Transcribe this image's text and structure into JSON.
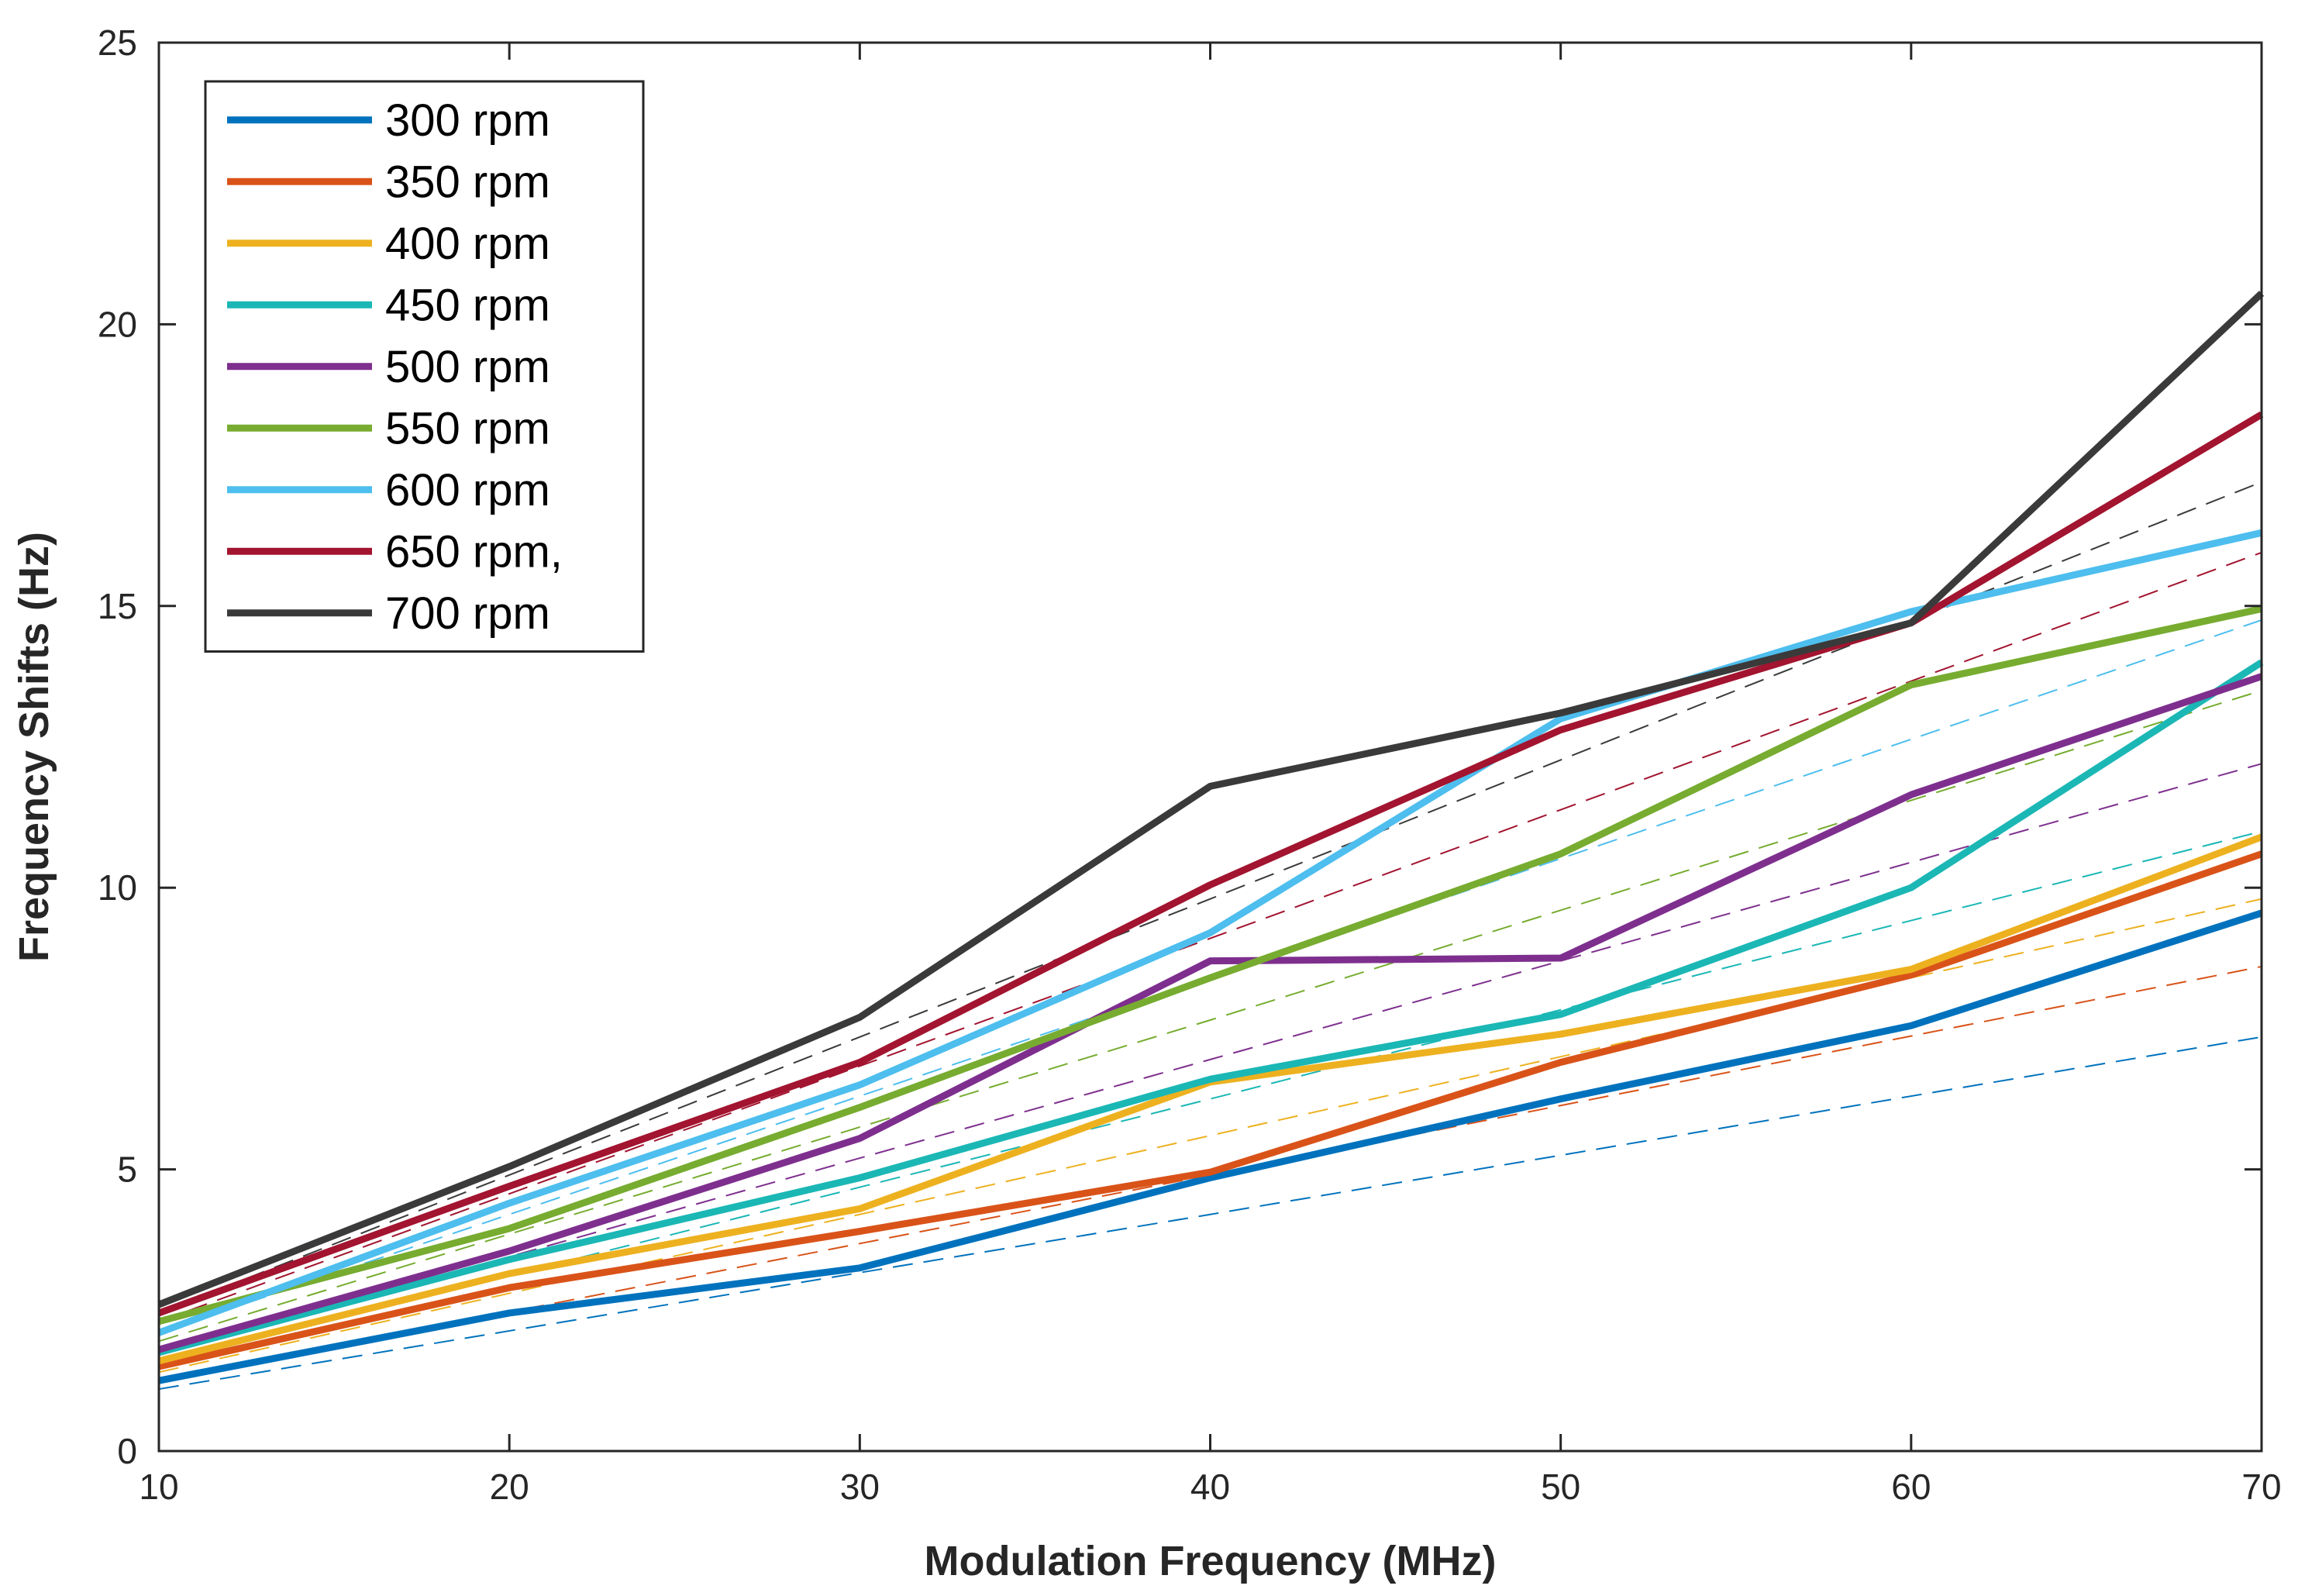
{
  "chart_data": {
    "type": "line",
    "title": "",
    "xlabel": "Modulation Frequency (MHz)",
    "ylabel": "Frequency Shifts (Hz)",
    "xlim": [
      10,
      70
    ],
    "ylim": [
      0,
      25
    ],
    "xticks": [
      10,
      20,
      30,
      40,
      50,
      60,
      70
    ],
    "yticks": [
      0,
      5,
      10,
      15,
      20,
      25
    ],
    "x": [
      10,
      20,
      30,
      40,
      50,
      60,
      70
    ],
    "legend_position": "top-left",
    "series": [
      {
        "name": "300 rpm",
        "color": "#0072BD",
        "values": [
          1.25,
          2.45,
          3.25,
          4.85,
          6.25,
          7.55,
          9.55
        ],
        "fit": [
          1.1,
          4.2,
          7.35
        ]
      },
      {
        "name": "350 rpm",
        "color": "#D95319",
        "values": [
          1.5,
          2.9,
          3.9,
          4.95,
          6.9,
          8.45,
          10.6
        ],
        "fit": [
          1.25,
          4.9,
          8.6
        ]
      },
      {
        "name": "400 rpm",
        "color": "#EDB120",
        "values": [
          1.6,
          3.15,
          4.3,
          6.55,
          7.4,
          8.55,
          10.9
        ],
        "fit": [
          1.4,
          5.6,
          9.8
        ]
      },
      {
        "name": "450 rpm",
        "color": "#1BB7B5",
        "values": [
          1.75,
          3.4,
          4.85,
          6.6,
          7.75,
          10.0,
          14.0
        ],
        "fit": [
          1.55,
          6.25,
          11.0
        ]
      },
      {
        "name": "500 rpm",
        "color": "#7E2F8E",
        "values": [
          1.8,
          3.55,
          5.55,
          8.7,
          8.75,
          11.65,
          13.75
        ],
        "fit": [
          1.7,
          6.95,
          12.2
        ]
      },
      {
        "name": "550 rpm",
        "color": "#77AC30",
        "values": [
          2.3,
          3.95,
          6.1,
          8.4,
          10.6,
          13.6,
          14.95
        ],
        "fit": [
          1.95,
          7.65,
          13.5
        ]
      },
      {
        "name": "600 rpm",
        "color": "#4DBEEE",
        "values": [
          2.1,
          4.4,
          6.5,
          9.2,
          13.0,
          14.9,
          16.3
        ],
        "fit": [
          2.1,
          8.4,
          14.75
        ]
      },
      {
        "name": "650 rpm,",
        "color": "#A2142F",
        "values": [
          2.45,
          4.7,
          6.9,
          10.05,
          12.8,
          14.7,
          18.4
        ],
        "fit": [
          2.3,
          9.1,
          15.95
        ]
      },
      {
        "name": "700 rpm",
        "color": "#3A3A3A",
        "values": [
          2.6,
          5.05,
          7.7,
          11.8,
          13.1,
          14.7,
          20.55
        ],
        "fit": [
          2.45,
          9.8,
          17.2
        ]
      }
    ],
    "fit_x": [
      10,
      40,
      70
    ],
    "grid": false
  }
}
